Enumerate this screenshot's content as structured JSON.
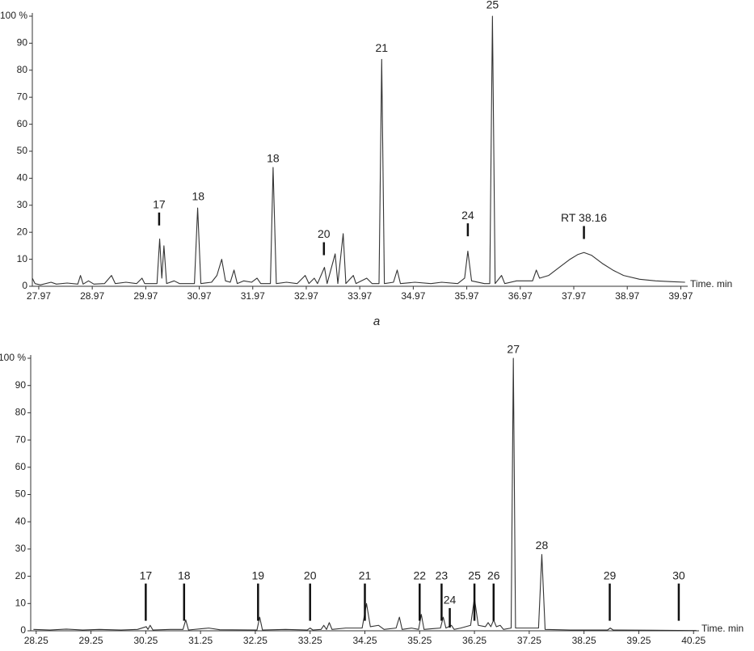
{
  "chart_data": [
    {
      "type": "line",
      "caption": "a",
      "xlabel": "Time. min",
      "xlim": [
        27.85,
        40.1
      ],
      "ylim": [
        0,
        100
      ],
      "xticks": [
        {
          "value": 27.97,
          "label": "27.97"
        },
        {
          "value": 28.97,
          "label": "28.97"
        },
        {
          "value": 29.97,
          "label": "29.97"
        },
        {
          "value": 30.97,
          "label": "30.97"
        },
        {
          "value": 31.97,
          "label": "31.97"
        },
        {
          "value": 32.97,
          "label": "32.97"
        },
        {
          "value": 33.97,
          "label": "33.97"
        },
        {
          "value": 34.97,
          "label": "34.97"
        },
        {
          "value": 35.97,
          "label": "35.97"
        },
        {
          "value": 36.97,
          "label": "36.97"
        },
        {
          "value": 37.97,
          "label": "37.97"
        },
        {
          "value": 38.97,
          "label": "38.97"
        },
        {
          "value": 39.97,
          "label": "39.97"
        }
      ],
      "yticks": [
        0,
        10,
        20,
        30,
        40,
        50,
        60,
        70,
        80,
        90,
        {
          "value": 100,
          "label": "100 %"
        }
      ],
      "color": "#333333",
      "x": [
        27.85,
        27.9,
        28.0,
        28.2,
        28.3,
        28.5,
        28.7,
        28.75,
        28.8,
        28.9,
        29.0,
        29.2,
        29.33,
        29.4,
        29.6,
        29.8,
        29.9,
        29.95,
        30.18,
        30.23,
        30.27,
        30.31,
        30.36,
        30.5,
        30.6,
        30.88,
        30.94,
        31.0,
        31.2,
        31.3,
        31.39,
        31.46,
        31.55,
        31.62,
        31.68,
        31.8,
        31.95,
        32.05,
        32.12,
        32.3,
        32.35,
        32.41,
        32.6,
        32.8,
        32.95,
        33.02,
        33.12,
        33.18,
        33.31,
        33.36,
        33.51,
        33.56,
        33.66,
        33.71,
        33.85,
        33.9,
        34.1,
        34.2,
        34.33,
        34.38,
        34.43,
        34.6,
        34.67,
        34.73,
        35.0,
        35.3,
        35.5,
        35.8,
        35.93,
        35.99,
        36.06,
        36.3,
        36.4,
        36.45,
        36.5,
        36.62,
        36.68,
        36.9,
        37.2,
        37.27,
        37.33,
        37.5,
        37.7,
        37.9,
        38.05,
        38.16,
        38.3,
        38.5,
        38.7,
        38.9,
        39.2,
        39.5,
        39.8,
        40.05
      ],
      "values": [
        3,
        1,
        0.5,
        1.5,
        0.8,
        1.2,
        0.8,
        4,
        0.8,
        2,
        0.8,
        1,
        4,
        1,
        1.5,
        1,
        3,
        1,
        1,
        17.5,
        3,
        15,
        1,
        2,
        1,
        1,
        29,
        1,
        1.5,
        4,
        10,
        2,
        1.5,
        6,
        1,
        2,
        1.5,
        3,
        1,
        1,
        44,
        1,
        1.5,
        1,
        4,
        1,
        3,
        1,
        7,
        1,
        12,
        1,
        19.5,
        1,
        4,
        1,
        3,
        1,
        1,
        84,
        1,
        1.5,
        6,
        1,
        1.5,
        1,
        1.5,
        1,
        3,
        13,
        2,
        1,
        1,
        100,
        1,
        4,
        1,
        2,
        2,
        6,
        3,
        4,
        7,
        10,
        11.8,
        12.5,
        11.5,
        8.5,
        6,
        4,
        2.6,
        2,
        1.7,
        1.5
      ],
      "annotations": [
        {
          "text": "17",
          "x": 30.22,
          "y": 30,
          "marker": true
        },
        {
          "text": "18",
          "x": 30.95,
          "y": 33,
          "marker": false
        },
        {
          "text": "18",
          "x": 32.35,
          "y": 47,
          "marker": false
        },
        {
          "text": "20",
          "x": 33.3,
          "y": 19,
          "marker": true
        },
        {
          "text": "21",
          "x": 34.38,
          "y": 88,
          "marker": false
        },
        {
          "text": "24",
          "x": 35.99,
          "y": 26,
          "marker": true
        },
        {
          "text": "25",
          "x": 36.45,
          "y": 104,
          "marker": false
        },
        {
          "text": "RT 38.16",
          "x": 38.16,
          "y": 25,
          "marker": true
        }
      ]
    },
    {
      "type": "line",
      "xlabel": "Time. min",
      "xlim": [
        28.15,
        40.35
      ],
      "ylim": [
        0,
        100
      ],
      "xticks": [
        28.25,
        29.25,
        30.25,
        31.25,
        32.25,
        33.25,
        34.25,
        35.25,
        36.25,
        37.25,
        38.25,
        39.25,
        40.25
      ],
      "yticks": [
        0,
        10,
        20,
        30,
        40,
        50,
        60,
        70,
        80,
        90,
        {
          "value": 100,
          "label": "100 %"
        }
      ],
      "color": "#333333",
      "x": [
        28.2,
        28.5,
        28.8,
        29.1,
        29.4,
        29.8,
        30.1,
        30.26,
        30.29,
        30.33,
        30.38,
        30.7,
        30.93,
        30.98,
        31.03,
        31.4,
        31.6,
        32.28,
        32.33,
        32.38,
        32.8,
        33.2,
        33.25,
        33.3,
        33.45,
        33.5,
        33.55,
        33.6,
        33.65,
        33.9,
        34.2,
        34.28,
        34.35,
        34.5,
        34.6,
        34.82,
        34.88,
        34.93,
        35.1,
        35.23,
        35.28,
        35.33,
        35.5,
        35.63,
        35.68,
        35.73,
        35.83,
        35.88,
        36.0,
        36.18,
        36.25,
        36.32,
        36.45,
        36.5,
        36.55,
        36.6,
        36.65,
        36.72,
        36.78,
        36.92,
        36.96,
        37.0,
        37.2,
        37.42,
        37.48,
        37.54,
        38.0,
        38.68,
        38.73,
        38.78,
        39.5,
        40.2,
        40.3
      ],
      "values": [
        0.5,
        0.3,
        0.6,
        0.3,
        0.5,
        0.3,
        0.5,
        1.5,
        0.5,
        2,
        0.3,
        0.5,
        0.5,
        4,
        0.3,
        1,
        0.4,
        0.3,
        5,
        0.3,
        0.5,
        0.3,
        1,
        0.3,
        0.5,
        2,
        0.5,
        3,
        0.5,
        1,
        1,
        10,
        1.5,
        2,
        0.5,
        1,
        5,
        0.5,
        1,
        0.5,
        6,
        0.5,
        0.8,
        1,
        5,
        1,
        2,
        0.5,
        1,
        2,
        12,
        2,
        1.5,
        3,
        1.5,
        4,
        1.5,
        2,
        0.5,
        1,
        100,
        1,
        1,
        1,
        28,
        0.5,
        0.3,
        0.3,
        1,
        0.3,
        0.2,
        0.1,
        0.1
      ],
      "annotations": [
        {
          "text": "17",
          "x": 30.25,
          "y": 20,
          "marker": true
        },
        {
          "text": "18",
          "x": 30.95,
          "y": 20,
          "marker": true
        },
        {
          "text": "19",
          "x": 32.3,
          "y": 20,
          "marker": true
        },
        {
          "text": "20",
          "x": 33.25,
          "y": 20,
          "marker": true
        },
        {
          "text": "21",
          "x": 34.25,
          "y": 20,
          "marker": true
        },
        {
          "text": "22",
          "x": 35.25,
          "y": 20,
          "marker": true
        },
        {
          "text": "23",
          "x": 35.65,
          "y": 20,
          "marker": true
        },
        {
          "text": "24",
          "x": 35.8,
          "y": 11,
          "marker": true
        },
        {
          "text": "25",
          "x": 36.25,
          "y": 20,
          "marker": true
        },
        {
          "text": "26",
          "x": 36.6,
          "y": 20,
          "marker": true
        },
        {
          "text": "27",
          "x": 36.96,
          "y": 103,
          "marker": false
        },
        {
          "text": "28",
          "x": 37.48,
          "y": 31,
          "marker": false
        },
        {
          "text": "29",
          "x": 38.72,
          "y": 20,
          "marker": true
        },
        {
          "text": "30",
          "x": 39.98,
          "y": 20,
          "marker": true
        }
      ]
    }
  ]
}
